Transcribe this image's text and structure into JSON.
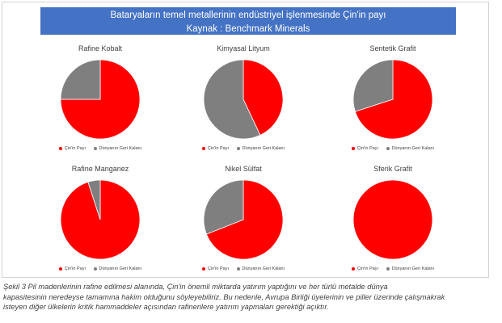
{
  "header": {
    "title": "Bataryaların temel metallerinin endüstriyel işlenmesinde  Çin'in payı",
    "source": "Kaynak : Benchmark Minerals"
  },
  "legend": {
    "china": "Çin'in Payı",
    "rest": "Dünyanın Geri Kalanı"
  },
  "colors": {
    "china": "#ff0000",
    "rest": "#7f7f7f",
    "banner": "#4472c4"
  },
  "chart_data": [
    {
      "type": "pie",
      "title": "Rafine Kobalt",
      "categories": [
        "Çin'in Payı",
        "Dünyanın Geri Kalanı"
      ],
      "values": [
        75,
        25
      ]
    },
    {
      "type": "pie",
      "title": "Kimyasal Lityum",
      "categories": [
        "Çin'in Payı",
        "Dünyanın Geri Kalanı"
      ],
      "values": [
        43,
        57
      ]
    },
    {
      "type": "pie",
      "title": "Sentetik Grafit",
      "categories": [
        "Çin'in Payı",
        "Dünyanın Geri Kalanı"
      ],
      "values": [
        70,
        30
      ]
    },
    {
      "type": "pie",
      "title": "Rafine Manganez",
      "categories": [
        "Çin'in Payı",
        "Dünyanın Geri Kalanı"
      ],
      "values": [
        95,
        5
      ]
    },
    {
      "type": "pie",
      "title": "Nikel Sülfat",
      "categories": [
        "Çin'in Payı",
        "Dünyanın Geri Kalanı"
      ],
      "values": [
        69,
        31
      ]
    },
    {
      "type": "pie",
      "title": "Sferik Grafit",
      "categories": [
        "Çin'in Payı",
        "Dünyanın Geri Kalanı"
      ],
      "values": [
        100,
        0
      ]
    }
  ],
  "caption": {
    "line1": "Şekil 3 Pil madenlerinin rafine edilmesi alanında, Çin'in önemli miktarda yatırım yaptığını ve her türlü metalde dünya",
    "line2": "kapasitesinin neredeyse tamamına hakim olduğunu söyleyebiliriz. Bu nedenle, Avrupa Birliği üyelerinin ve piller üzerinde çalışmakrak",
    "line3": "isteyen diğer ülkelerin kritik hammaddeler açısından rafinerilere yatırım yapmaları gerektiği açıktır."
  }
}
